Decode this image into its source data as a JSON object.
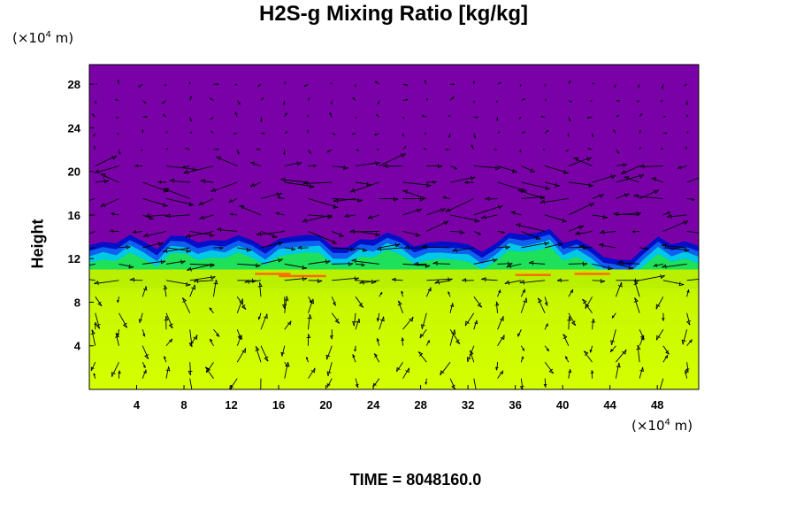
{
  "title": "H2S-g Mixing Ratio [kg/kg]",
  "y_unit": "(×10",
  "y_unit_exp": "4",
  "y_unit_tail": " m)",
  "x_unit": "(×10",
  "x_unit_exp": "4",
  "x_unit_tail": " m)",
  "time_label": "TIME = 8048160.0",
  "chart_data": {
    "type": "heatmap",
    "title": "H2S-g Mixing Ratio [kg/kg]",
    "xlabel": "",
    "ylabel": "Height",
    "x_unit": "×10^4 m",
    "y_unit": "×10^4 m",
    "xlim": [
      0,
      51.5
    ],
    "ylim": [
      0,
      29.8
    ],
    "x_ticks": [
      4,
      8,
      12,
      16,
      20,
      24,
      28,
      32,
      36,
      40,
      44,
      48
    ],
    "y_ticks": [
      4,
      8,
      12,
      16,
      20,
      24,
      28
    ],
    "grid": false,
    "overlay": "wind vector arrows",
    "colors": {
      "upper": "#7a00a8",
      "interface_dark": "#0010c8",
      "interface_mid": "#00c8e6",
      "green": "#1ee05a",
      "lower": "#d0ff00",
      "lower_band": "#b8f000",
      "hot": "#ff6a00"
    },
    "interface_height": [
      12.6,
      12.7,
      13.1,
      13.4,
      12.9,
      12.5,
      13.2,
      13.6,
      13.0,
      12.8,
      13.3,
      13.5,
      12.9,
      12.7,
      13.0,
      13.4,
      13.8,
      13.2,
      12.6,
      12.5,
      12.9,
      13.4,
      13.7,
      13.2,
      12.8,
      12.6,
      13.0,
      13.1,
      12.4,
      12.2,
      12.8,
      13.5,
      13.9,
      13.6,
      14.0,
      13.1,
      12.9,
      12.6,
      11.7,
      11.0,
      11.5,
      12.4,
      13.2,
      13.0,
      12.8,
      12.5
    ],
    "time": 8048160.0
  }
}
